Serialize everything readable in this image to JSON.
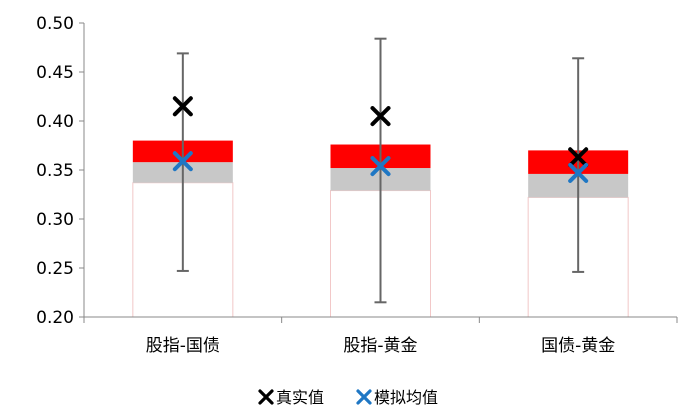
{
  "chart_data": {
    "type": "box",
    "title": "",
    "xlabel": "",
    "ylabel": "",
    "ylim": [
      0.2,
      0.5
    ],
    "y_ticks": [
      "0.20",
      "0.25",
      "0.30",
      "0.35",
      "0.40",
      "0.45",
      "0.50"
    ],
    "categories": [
      "股指-国债",
      "股指-黄金",
      "国债-黄金"
    ],
    "series": [
      {
        "name": "真实值",
        "values": [
          0.415,
          0.405,
          0.363
        ]
      },
      {
        "name": "模拟均值",
        "values": [
          0.359,
          0.354,
          0.347
        ]
      }
    ],
    "boxes": [
      {
        "category": "股指-国债",
        "whisker_low": 0.247,
        "whisker_high": 0.469,
        "q1": 0.337,
        "median": 0.358,
        "q3": 0.38
      },
      {
        "category": "股指-黄金",
        "whisker_low": 0.215,
        "whisker_high": 0.484,
        "q1": 0.329,
        "median": 0.352,
        "q3": 0.376
      },
      {
        "category": "国债-黄金",
        "whisker_low": 0.246,
        "whisker_high": 0.464,
        "q1": 0.322,
        "median": 0.346,
        "q3": 0.37
      }
    ],
    "legend_position": "bottom",
    "grid": false,
    "colors": {
      "upper_box": "#ff0000",
      "lower_box": "#c8c8c8",
      "whisker": "#666666",
      "real_marker": "#000000",
      "sim_marker": "#1f77c4"
    }
  }
}
